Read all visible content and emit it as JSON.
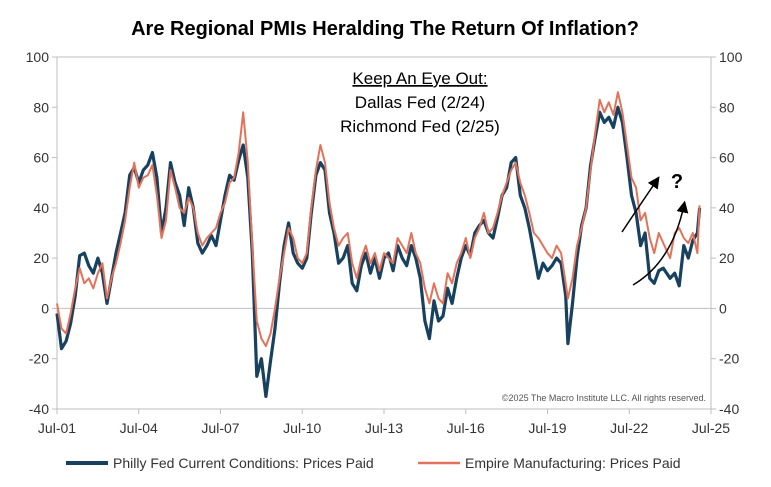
{
  "chart_data": {
    "type": "line",
    "title": "Are Regional PMIs Heralding The Return Of Inflation?",
    "x_tick_labels": [
      "Jul-01",
      "Jul-04",
      "Jul-07",
      "Jul-10",
      "Jul-13",
      "Jul-16",
      "Jul-19",
      "Jul-22",
      "Jul-25"
    ],
    "y_ticks": [
      100,
      80,
      60,
      40,
      20,
      0,
      -20,
      -40
    ],
    "ylim": [
      -40,
      100
    ],
    "xlim": [
      "2001-07",
      "2025-07"
    ],
    "grid": false,
    "legend_position": "bottom",
    "annotation": {
      "heading": "Keep An Eye Out:",
      "lines": [
        "Dallas Fed (2/24)",
        "Richmond Fed (2/25)"
      ]
    },
    "question_mark": "?",
    "copyright": "©2025 The Macro Institute LLC. All rights reserved.",
    "series": [
      {
        "name": "Philly Fed Current Conditions: Prices Paid",
        "color": "#17415f",
        "points": [
          [
            "2001-07",
            -2
          ],
          [
            "2001-09",
            -16
          ],
          [
            "2001-11",
            -13
          ],
          [
            "2002-01",
            -6
          ],
          [
            "2002-03",
            5
          ],
          [
            "2002-05",
            21
          ],
          [
            "2002-07",
            22
          ],
          [
            "2002-09",
            17
          ],
          [
            "2002-11",
            14
          ],
          [
            "2003-01",
            20
          ],
          [
            "2003-03",
            14
          ],
          [
            "2003-05",
            2
          ],
          [
            "2003-07",
            12
          ],
          [
            "2003-09",
            22
          ],
          [
            "2003-11",
            30
          ],
          [
            "2004-01",
            38
          ],
          [
            "2004-03",
            53
          ],
          [
            "2004-05",
            56
          ],
          [
            "2004-07",
            50
          ],
          [
            "2004-09",
            55
          ],
          [
            "2004-11",
            57
          ],
          [
            "2005-01",
            62
          ],
          [
            "2005-03",
            52
          ],
          [
            "2005-05",
            30
          ],
          [
            "2005-07",
            40
          ],
          [
            "2005-09",
            58
          ],
          [
            "2005-11",
            50
          ],
          [
            "2006-01",
            45
          ],
          [
            "2006-03",
            33
          ],
          [
            "2006-05",
            48
          ],
          [
            "2006-07",
            40
          ],
          [
            "2006-09",
            26
          ],
          [
            "2006-11",
            22
          ],
          [
            "2007-01",
            25
          ],
          [
            "2007-03",
            29
          ],
          [
            "2007-05",
            25
          ],
          [
            "2007-07",
            35
          ],
          [
            "2007-09",
            45
          ],
          [
            "2007-11",
            53
          ],
          [
            "2008-01",
            51
          ],
          [
            "2008-03",
            59
          ],
          [
            "2008-05",
            65
          ],
          [
            "2008-07",
            52
          ],
          [
            "2008-09",
            22
          ],
          [
            "2008-11",
            -27
          ],
          [
            "2009-01",
            -20
          ],
          [
            "2009-03",
            -35
          ],
          [
            "2009-05",
            -21
          ],
          [
            "2009-07",
            -8
          ],
          [
            "2009-09",
            10
          ],
          [
            "2009-11",
            25
          ],
          [
            "2010-01",
            34
          ],
          [
            "2010-03",
            22
          ],
          [
            "2010-05",
            18
          ],
          [
            "2010-07",
            16
          ],
          [
            "2010-09",
            20
          ],
          [
            "2010-11",
            38
          ],
          [
            "2011-01",
            53
          ],
          [
            "2011-03",
            58
          ],
          [
            "2011-05",
            55
          ],
          [
            "2011-07",
            38
          ],
          [
            "2011-09",
            30
          ],
          [
            "2011-11",
            18
          ],
          [
            "2012-01",
            20
          ],
          [
            "2012-03",
            25
          ],
          [
            "2012-05",
            10
          ],
          [
            "2012-07",
            7
          ],
          [
            "2012-09",
            17
          ],
          [
            "2012-11",
            22
          ],
          [
            "2013-01",
            14
          ],
          [
            "2013-03",
            20
          ],
          [
            "2013-05",
            12
          ],
          [
            "2013-07",
            20
          ],
          [
            "2013-09",
            22
          ],
          [
            "2013-11",
            15
          ],
          [
            "2014-01",
            25
          ],
          [
            "2014-03",
            20
          ],
          [
            "2014-05",
            17
          ],
          [
            "2014-07",
            25
          ],
          [
            "2014-09",
            20
          ],
          [
            "2014-11",
            12
          ],
          [
            "2015-01",
            -5
          ],
          [
            "2015-03",
            -12
          ],
          [
            "2015-05",
            3
          ],
          [
            "2015-07",
            -5
          ],
          [
            "2015-09",
            -3
          ],
          [
            "2015-11",
            8
          ],
          [
            "2016-01",
            2
          ],
          [
            "2016-03",
            12
          ],
          [
            "2016-05",
            20
          ],
          [
            "2016-07",
            25
          ],
          [
            "2016-09",
            21
          ],
          [
            "2016-11",
            30
          ],
          [
            "2017-01",
            33
          ],
          [
            "2017-03",
            35
          ],
          [
            "2017-05",
            30
          ],
          [
            "2017-07",
            28
          ],
          [
            "2017-09",
            36
          ],
          [
            "2017-11",
            45
          ],
          [
            "2018-01",
            48
          ],
          [
            "2018-03",
            58
          ],
          [
            "2018-05",
            60
          ],
          [
            "2018-07",
            45
          ],
          [
            "2018-09",
            40
          ],
          [
            "2018-11",
            32
          ],
          [
            "2019-01",
            22
          ],
          [
            "2019-03",
            12
          ],
          [
            "2019-05",
            18
          ],
          [
            "2019-07",
            15
          ],
          [
            "2019-09",
            17
          ],
          [
            "2019-11",
            20
          ],
          [
            "2020-01",
            18
          ],
          [
            "2020-03",
            5
          ],
          [
            "2020-04",
            -14
          ],
          [
            "2020-06",
            2
          ],
          [
            "2020-08",
            20
          ],
          [
            "2020-10",
            33
          ],
          [
            "2020-12",
            40
          ],
          [
            "2021-02",
            57
          ],
          [
            "2021-04",
            68
          ],
          [
            "2021-06",
            78
          ],
          [
            "2021-08",
            74
          ],
          [
            "2021-10",
            76
          ],
          [
            "2021-12",
            72
          ],
          [
            "2022-02",
            80
          ],
          [
            "2022-04",
            74
          ],
          [
            "2022-06",
            60
          ],
          [
            "2022-08",
            45
          ],
          [
            "2022-10",
            38
          ],
          [
            "2022-12",
            25
          ],
          [
            "2023-02",
            30
          ],
          [
            "2023-04",
            12
          ],
          [
            "2023-06",
            10
          ],
          [
            "2023-08",
            15
          ],
          [
            "2023-10",
            16
          ],
          [
            "2024-01",
            12
          ],
          [
            "2024-03",
            14
          ],
          [
            "2024-05",
            9
          ],
          [
            "2024-07",
            25
          ],
          [
            "2024-09",
            20
          ],
          [
            "2024-11",
            27
          ],
          [
            "2025-01",
            30
          ],
          [
            "2025-02",
            40
          ]
        ]
      },
      {
        "name": "Empire Manufacturing: Prices Paid",
        "color": "#e2735a",
        "points": [
          [
            "2001-07",
            2
          ],
          [
            "2001-09",
            -8
          ],
          [
            "2001-11",
            -10
          ],
          [
            "2002-01",
            -2
          ],
          [
            "2002-03",
            8
          ],
          [
            "2002-05",
            16
          ],
          [
            "2002-07",
            10
          ],
          [
            "2002-09",
            12
          ],
          [
            "2002-11",
            8
          ],
          [
            "2003-01",
            14
          ],
          [
            "2003-03",
            18
          ],
          [
            "2003-05",
            4
          ],
          [
            "2003-07",
            12
          ],
          [
            "2003-09",
            18
          ],
          [
            "2003-11",
            26
          ],
          [
            "2004-01",
            35
          ],
          [
            "2004-03",
            48
          ],
          [
            "2004-05",
            58
          ],
          [
            "2004-07",
            48
          ],
          [
            "2004-09",
            52
          ],
          [
            "2004-11",
            53
          ],
          [
            "2005-01",
            57
          ],
          [
            "2005-03",
            45
          ],
          [
            "2005-05",
            28
          ],
          [
            "2005-07",
            35
          ],
          [
            "2005-09",
            55
          ],
          [
            "2005-11",
            48
          ],
          [
            "2006-01",
            40
          ],
          [
            "2006-03",
            38
          ],
          [
            "2006-05",
            44
          ],
          [
            "2006-07",
            40
          ],
          [
            "2006-09",
            30
          ],
          [
            "2006-11",
            25
          ],
          [
            "2007-01",
            28
          ],
          [
            "2007-03",
            30
          ],
          [
            "2007-05",
            32
          ],
          [
            "2007-07",
            38
          ],
          [
            "2007-09",
            42
          ],
          [
            "2007-11",
            50
          ],
          [
            "2008-01",
            52
          ],
          [
            "2008-03",
            62
          ],
          [
            "2008-05",
            78
          ],
          [
            "2008-07",
            58
          ],
          [
            "2008-09",
            25
          ],
          [
            "2008-11",
            -5
          ],
          [
            "2009-01",
            -12
          ],
          [
            "2009-03",
            -15
          ],
          [
            "2009-05",
            -10
          ],
          [
            "2009-07",
            0
          ],
          [
            "2009-09",
            12
          ],
          [
            "2009-11",
            22
          ],
          [
            "2010-01",
            32
          ],
          [
            "2010-03",
            28
          ],
          [
            "2010-05",
            20
          ],
          [
            "2010-07",
            18
          ],
          [
            "2010-09",
            22
          ],
          [
            "2010-11",
            40
          ],
          [
            "2011-01",
            55
          ],
          [
            "2011-03",
            65
          ],
          [
            "2011-05",
            58
          ],
          [
            "2011-07",
            42
          ],
          [
            "2011-09",
            32
          ],
          [
            "2011-11",
            25
          ],
          [
            "2012-01",
            28
          ],
          [
            "2012-03",
            30
          ],
          [
            "2012-05",
            18
          ],
          [
            "2012-07",
            12
          ],
          [
            "2012-09",
            20
          ],
          [
            "2012-11",
            25
          ],
          [
            "2013-01",
            18
          ],
          [
            "2013-03",
            22
          ],
          [
            "2013-05",
            15
          ],
          [
            "2013-07",
            22
          ],
          [
            "2013-09",
            20
          ],
          [
            "2013-11",
            18
          ],
          [
            "2014-01",
            28
          ],
          [
            "2014-03",
            25
          ],
          [
            "2014-05",
            22
          ],
          [
            "2014-07",
            30
          ],
          [
            "2014-09",
            22
          ],
          [
            "2014-11",
            18
          ],
          [
            "2015-01",
            8
          ],
          [
            "2015-03",
            2
          ],
          [
            "2015-05",
            10
          ],
          [
            "2015-07",
            4
          ],
          [
            "2015-09",
            2
          ],
          [
            "2015-11",
            14
          ],
          [
            "2016-01",
            10
          ],
          [
            "2016-03",
            18
          ],
          [
            "2016-05",
            22
          ],
          [
            "2016-07",
            28
          ],
          [
            "2016-09",
            20
          ],
          [
            "2016-11",
            28
          ],
          [
            "2017-01",
            32
          ],
          [
            "2017-03",
            38
          ],
          [
            "2017-05",
            30
          ],
          [
            "2017-07",
            32
          ],
          [
            "2017-09",
            38
          ],
          [
            "2017-11",
            45
          ],
          [
            "2018-01",
            50
          ],
          [
            "2018-03",
            55
          ],
          [
            "2018-05",
            58
          ],
          [
            "2018-07",
            50
          ],
          [
            "2018-09",
            45
          ],
          [
            "2018-11",
            38
          ],
          [
            "2019-01",
            30
          ],
          [
            "2019-03",
            28
          ],
          [
            "2019-05",
            25
          ],
          [
            "2019-07",
            22
          ],
          [
            "2019-09",
            20
          ],
          [
            "2019-11",
            25
          ],
          [
            "2020-01",
            22
          ],
          [
            "2020-03",
            10
          ],
          [
            "2020-04",
            4
          ],
          [
            "2020-06",
            12
          ],
          [
            "2020-08",
            25
          ],
          [
            "2020-10",
            32
          ],
          [
            "2020-12",
            40
          ],
          [
            "2021-02",
            55
          ],
          [
            "2021-04",
            70
          ],
          [
            "2021-06",
            83
          ],
          [
            "2021-08",
            78
          ],
          [
            "2021-10",
            82
          ],
          [
            "2021-12",
            77
          ],
          [
            "2022-02",
            86
          ],
          [
            "2022-04",
            78
          ],
          [
            "2022-06",
            65
          ],
          [
            "2022-08",
            52
          ],
          [
            "2022-10",
            48
          ],
          [
            "2022-12",
            35
          ],
          [
            "2023-02",
            38
          ],
          [
            "2023-04",
            28
          ],
          [
            "2023-06",
            22
          ],
          [
            "2023-08",
            30
          ],
          [
            "2023-10",
            26
          ],
          [
            "2024-01",
            20
          ],
          [
            "2024-03",
            30
          ],
          [
            "2024-05",
            32
          ],
          [
            "2024-07",
            28
          ],
          [
            "2024-09",
            26
          ],
          [
            "2024-11",
            30
          ],
          [
            "2025-01",
            22
          ],
          [
            "2025-02",
            41
          ]
        ]
      }
    ]
  }
}
